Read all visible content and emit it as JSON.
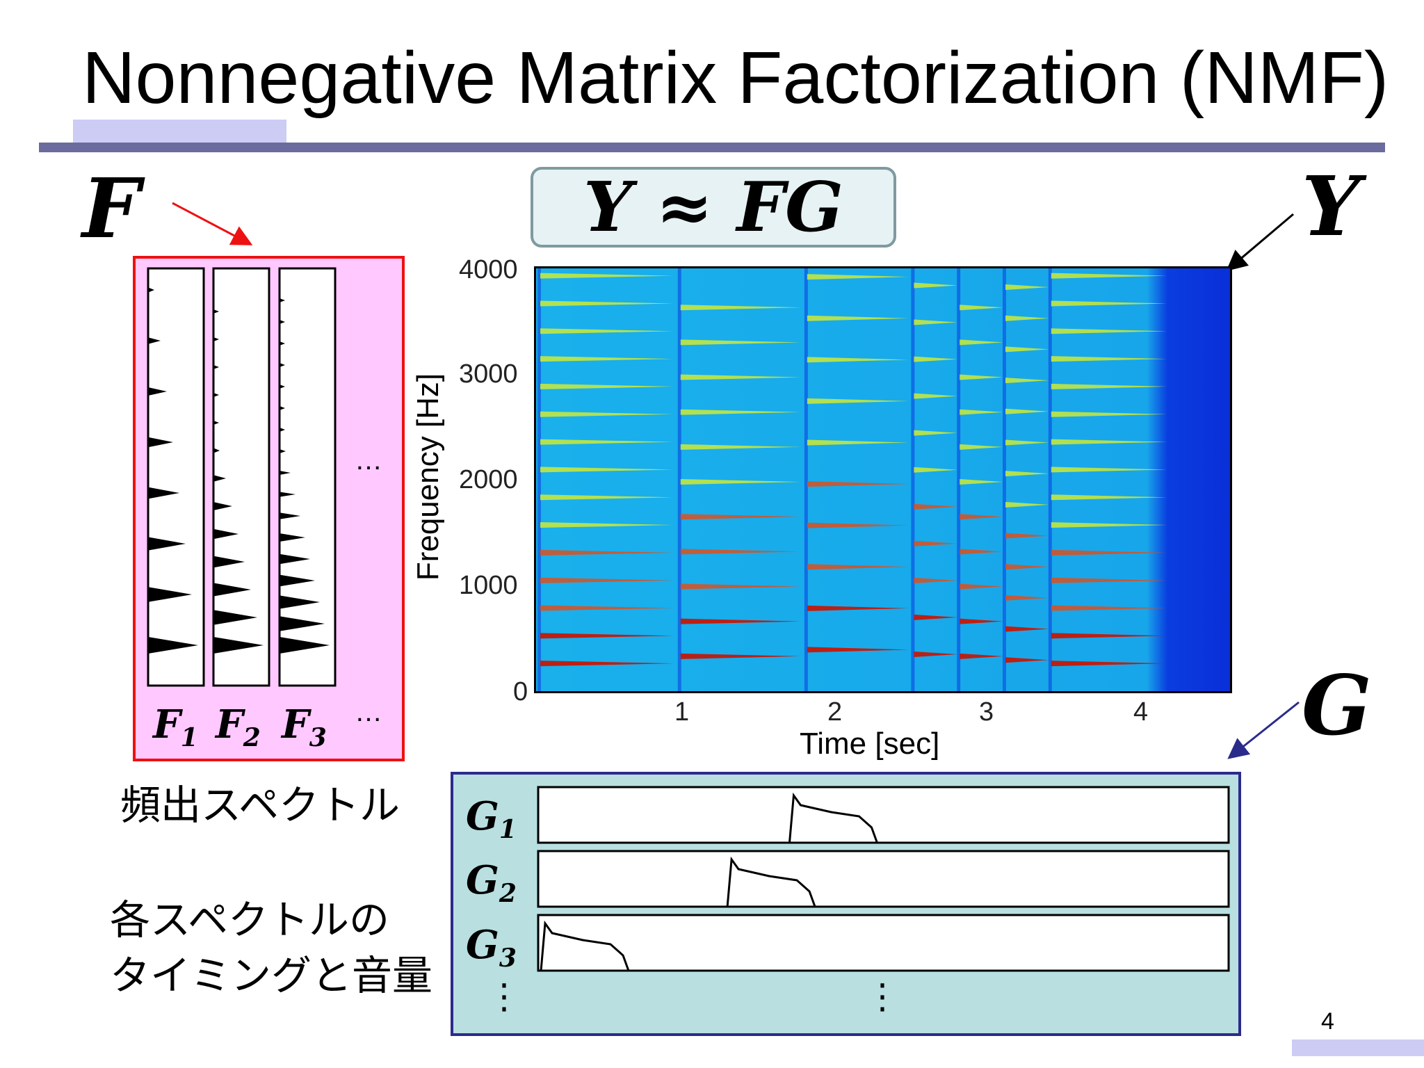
{
  "slide": {
    "title": "Nonnegative Matrix Factorization (NMF)",
    "page_number": "4"
  },
  "equation": "Y ≈ FG",
  "labels": {
    "F": "F",
    "Y": "Y",
    "G": "G"
  },
  "factors": {
    "spectra": [
      "F",
      "F",
      "F"
    ],
    "spectra_subs": [
      "1",
      "2",
      "3"
    ],
    "ellipsis": "…",
    "caption": "頻出スペクトル"
  },
  "activations": {
    "rows": [
      "G",
      "G",
      "G"
    ],
    "rows_subs": [
      "1",
      "2",
      "3"
    ],
    "vertical_ellipsis": "⋮",
    "caption_line1": "各スペクトルの",
    "caption_line2": "タイミングと音量"
  },
  "spectrogram": {
    "ylabel": "Frequency [Hz]",
    "xlabel": "Time [sec]",
    "y_ticks": [
      "4000",
      "3000",
      "2000",
      "1000",
      "0"
    ],
    "x_ticks": [
      "1",
      "2",
      "3",
      "4"
    ],
    "ylim": [
      0,
      4000
    ],
    "xlim": [
      0,
      4.55
    ],
    "colormap": "jet",
    "colors": {
      "background": "#19b0ec",
      "low": "#0a2fd8",
      "mid": "#d8ee2a",
      "high": "#c41808"
    }
  },
  "colors": {
    "title_rule": "#6b6b9e",
    "accent": "#ccccf5",
    "f_panel": "#ffc8ff",
    "f_border": "#ee1111",
    "g_panel": "#b9dfe0",
    "g_border": "#2b2b8c"
  }
}
